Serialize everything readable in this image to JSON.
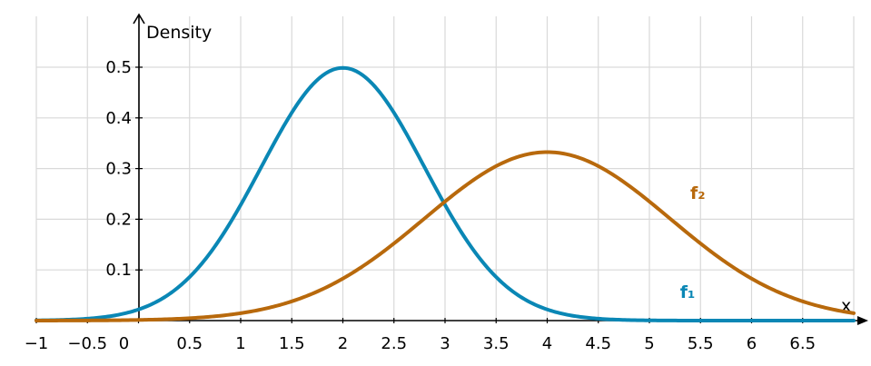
{
  "chart_data": {
    "type": "line",
    "title": "",
    "xlabel": "x",
    "ylabel": "Density",
    "xlim": [
      -1,
      7
    ],
    "ylim": [
      0,
      0.56
    ],
    "grid": true,
    "x_ticks": [
      -1,
      -0.5,
      0,
      0.5,
      1,
      1.5,
      2,
      2.5,
      3,
      3.5,
      4,
      4.5,
      5,
      5.5,
      6,
      6.5
    ],
    "x_tick_labels": [
      "−1",
      "−0.5",
      "0",
      "0.5",
      "1",
      "1.5",
      "2",
      "2.5",
      "3",
      "3.5",
      "4",
      "4.5",
      "5",
      "5.5",
      "6",
      "6.5"
    ],
    "y_ticks": [
      0.1,
      0.2,
      0.3,
      0.4,
      0.5
    ],
    "y_tick_labels": [
      "0.1",
      "0.2",
      "0.3",
      "0.4",
      "0.5"
    ],
    "series": [
      {
        "name": "f₁",
        "color": "#0a87b5",
        "distribution": "normal",
        "mean": 2,
        "sd": 0.8,
        "label_position": [
          5.3,
          0.045
        ]
      },
      {
        "name": "f₂",
        "color": "#b8690c",
        "distribution": "normal",
        "mean": 4,
        "sd": 1.2,
        "label_position": [
          5.4,
          0.24
        ]
      }
    ]
  }
}
